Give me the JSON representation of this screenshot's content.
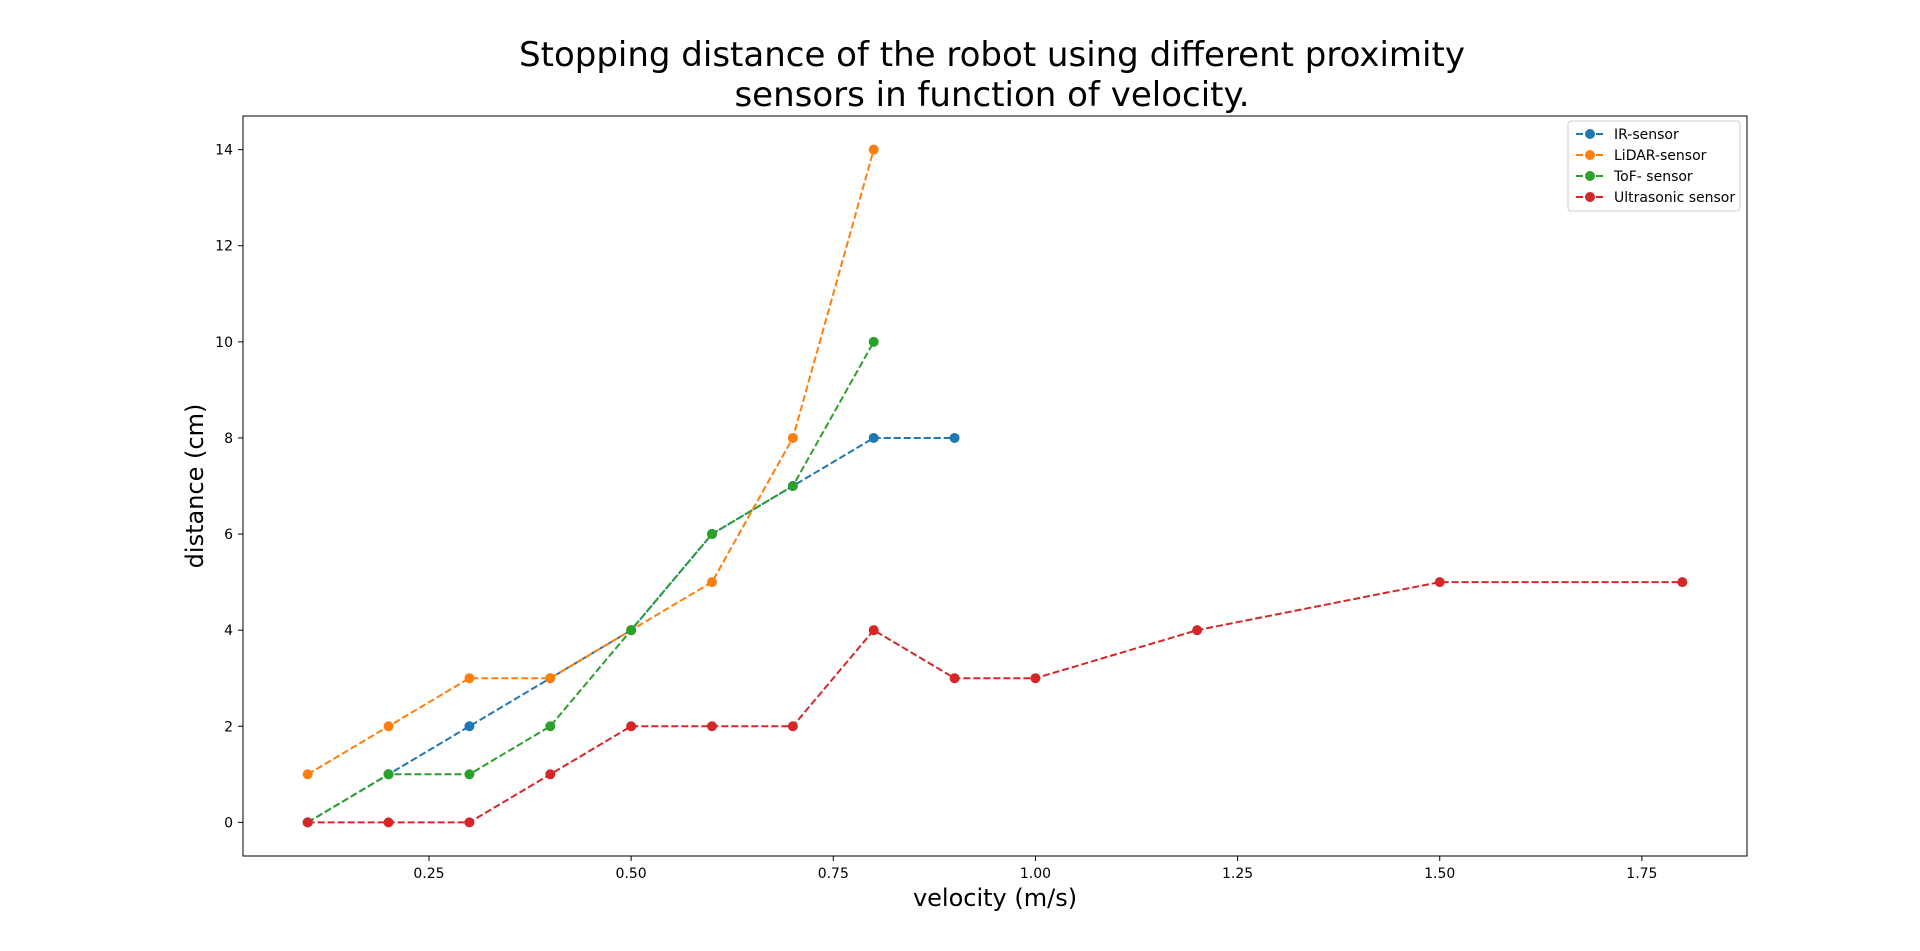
{
  "chart_data": {
    "type": "line",
    "title_lines": [
      "Stopping distance of the robot using different proximity",
      "sensors in function of velocity."
    ],
    "xlabel": "velocity (m/s)",
    "ylabel": "distance (cm)",
    "xlim": [
      0.02,
      1.88
    ],
    "ylim": [
      -0.7,
      14.7
    ],
    "xticks": [
      0.25,
      0.5,
      0.75,
      1.0,
      1.25,
      1.5,
      1.75
    ],
    "xtick_labels": [
      "0.25",
      "0.50",
      "0.75",
      "1.00",
      "1.25",
      "1.50",
      "1.75"
    ],
    "yticks": [
      0,
      2,
      4,
      6,
      8,
      10,
      12,
      14
    ],
    "ytick_labels": [
      "0",
      "2",
      "4",
      "6",
      "8",
      "10",
      "12",
      "14"
    ],
    "legend_position": "top-right",
    "series": [
      {
        "name": "IR-sensor",
        "color": "#1f77b4",
        "x": [
          0.1,
          0.2,
          0.3,
          0.4,
          0.5,
          0.6,
          0.7,
          0.8,
          0.9
        ],
        "y": [
          0,
          1,
          2,
          3,
          4,
          6,
          7,
          8,
          8
        ]
      },
      {
        "name": "LiDAR-sensor",
        "color": "#ff7f0e",
        "x": [
          0.1,
          0.2,
          0.3,
          0.4,
          0.5,
          0.6,
          0.7,
          0.8
        ],
        "y": [
          1,
          2,
          3,
          3,
          4,
          5,
          8,
          14
        ]
      },
      {
        "name": "ToF- sensor",
        "color": "#2ca02c",
        "x": [
          0.1,
          0.2,
          0.3,
          0.4,
          0.5,
          0.6,
          0.7,
          0.8
        ],
        "y": [
          0,
          1,
          1,
          2,
          4,
          6,
          7,
          10
        ]
      },
      {
        "name": "Ultrasonic sensor",
        "color": "#d62728",
        "x": [
          0.1,
          0.2,
          0.3,
          0.4,
          0.5,
          0.6,
          0.7,
          0.8,
          0.9,
          1.0,
          1.2,
          1.5,
          1.8
        ],
        "y": [
          0,
          0,
          0,
          1,
          2,
          2,
          2,
          4,
          3,
          3,
          4,
          5,
          5
        ]
      }
    ]
  }
}
